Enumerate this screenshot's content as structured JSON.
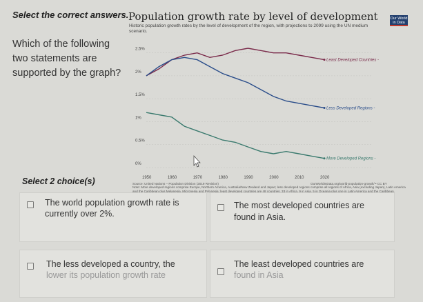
{
  "header": {
    "instruction": "Select the correct answers."
  },
  "question": {
    "text": "Which of the following two statements are supported by the graph?"
  },
  "select_count": "Select 2 choice(s)",
  "chart": {
    "title": "Population growth rate by level of development",
    "subtitle": "Historic population growth rates by the level of development of the region, with projections to 2099 using the UN medium scenario.",
    "badge": "Our World in Data",
    "source_left": "Source: United Nations – Population Division (2019 Revision)",
    "source_right": "OurWorldInData.org/world-population-growth/ • CC BY",
    "note": "Note: More developed regions comprise Europe, Northern America, Australia/New Zealand and Japan; less developed regions comprise all regions of Africa, Asia (excluding Japan), Latin America and the Caribbean plus Melanesia, Micronesia and Polynesia; least developed countries are 48 countries, 33 in Africa, 9 in Asia, 5 in Oceania plus one in Latin America and the Caribbean."
  },
  "chart_data": {
    "type": "line",
    "title": "Population growth rate by level of development",
    "x_ticks": [
      "1950",
      "1960",
      "1970",
      "1980",
      "1990",
      "2000",
      "2010",
      "2020"
    ],
    "y_ticks": [
      "0%",
      "0.5%",
      "1%",
      "1.5%",
      "2%",
      "2.5%"
    ],
    "ylim": [
      0,
      2.6
    ],
    "grid": true,
    "series": [
      {
        "name": "Least Developed Countries",
        "color": "#7a2a4a",
        "x": [
          1950,
          1955,
          1960,
          1965,
          1970,
          1975,
          1980,
          1985,
          1990,
          1995,
          2000,
          2005,
          2010,
          2015,
          2020
        ],
        "y": [
          2.0,
          2.15,
          2.35,
          2.45,
          2.5,
          2.4,
          2.45,
          2.55,
          2.6,
          2.55,
          2.5,
          2.5,
          2.45,
          2.4,
          2.35
        ]
      },
      {
        "name": "Less Developed Regions",
        "color": "#2a4d8a",
        "x": [
          1950,
          1955,
          1960,
          1965,
          1970,
          1975,
          1980,
          1985,
          1990,
          1995,
          2000,
          2005,
          2010,
          2015,
          2020
        ],
        "y": [
          2.0,
          2.2,
          2.35,
          2.4,
          2.35,
          2.2,
          2.05,
          1.95,
          1.85,
          1.7,
          1.55,
          1.45,
          1.4,
          1.35,
          1.3
        ]
      },
      {
        "name": "More Developed Regions",
        "color": "#3a7a6e",
        "x": [
          1950,
          1955,
          1960,
          1965,
          1970,
          1975,
          1980,
          1985,
          1990,
          1995,
          2000,
          2005,
          2010,
          2015,
          2020
        ],
        "y": [
          1.2,
          1.15,
          1.1,
          0.9,
          0.8,
          0.7,
          0.6,
          0.55,
          0.45,
          0.35,
          0.3,
          0.35,
          0.3,
          0.25,
          0.2
        ]
      }
    ],
    "series_labels": [
      "Least Developed Countries -",
      "Less Developed Regions -",
      "More Developed Regions -"
    ]
  },
  "choices": [
    {
      "line1": "The world population growth rate is",
      "line2": "currently over 2%."
    },
    {
      "line1": "The most developed countries are",
      "line2": "found in Asia."
    },
    {
      "line1": "The less developed a country, the",
      "line2": "lower its population growth rate"
    },
    {
      "line1": "The least developed countries are",
      "line2": "found in Asia"
    }
  ]
}
